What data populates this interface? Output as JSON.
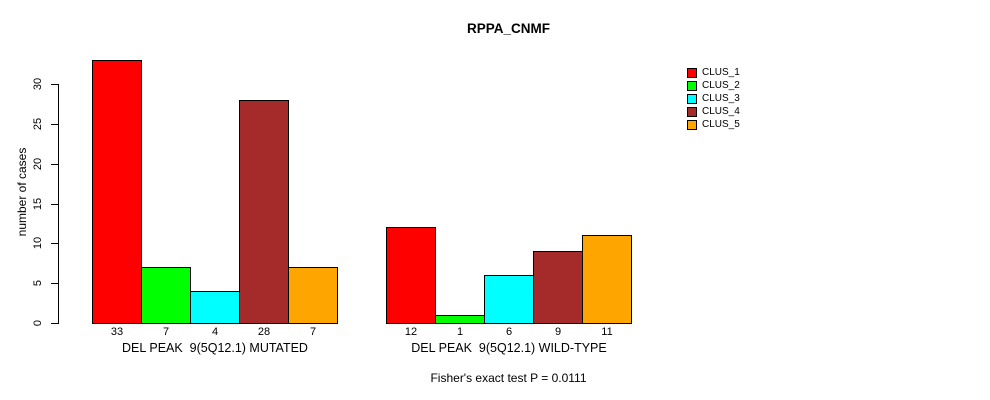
{
  "title": "RPPA_CNMF",
  "footer": "Fisher's exact test P = 0.0111",
  "y_axis": {
    "label": "number of cases",
    "ticks": [
      0,
      5,
      10,
      15,
      20,
      25,
      30
    ]
  },
  "legend": {
    "items": [
      {
        "label": "CLUS_1",
        "color": "#FF0000"
      },
      {
        "label": "CLUS_2",
        "color": "#00FF00"
      },
      {
        "label": "CLUS_3",
        "color": "#00FFFF"
      },
      {
        "label": "CLUS_4",
        "color": "#A52A2A"
      },
      {
        "label": "CLUS_5",
        "color": "#FFA500"
      }
    ]
  },
  "chart_data": {
    "type": "bar",
    "title": "RPPA_CNMF",
    "xlabel": "",
    "ylabel": "number of cases",
    "ylim": [
      0,
      33
    ],
    "yticks": [
      0,
      5,
      10,
      15,
      20,
      25,
      30
    ],
    "grid": false,
    "legend_position": "top-right",
    "bar_value_labels": true,
    "categories": [
      "DEL PEAK  9(5Q12.1) MUTATED",
      "DEL PEAK  9(5Q12.1) WILD-TYPE"
    ],
    "series": [
      {
        "name": "CLUS_1",
        "color": "#FF0000",
        "values": [
          33,
          12
        ]
      },
      {
        "name": "CLUS_2",
        "color": "#00FF00",
        "values": [
          7,
          1
        ]
      },
      {
        "name": "CLUS_3",
        "color": "#00FFFF",
        "values": [
          4,
          6
        ]
      },
      {
        "name": "CLUS_4",
        "color": "#A52A2A",
        "values": [
          28,
          9
        ]
      },
      {
        "name": "CLUS_5",
        "color": "#FFA500",
        "values": [
          7,
          11
        ]
      }
    ],
    "annotation": "Fisher's exact test P = 0.0111"
  }
}
